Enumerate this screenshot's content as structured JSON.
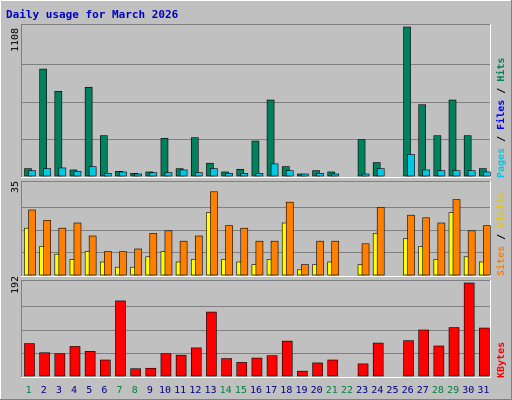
{
  "chart_data": [
    {
      "type": "bar",
      "panel": "hits-files-pages",
      "title": "Daily usage for March 2026",
      "ylabel_max": "1108",
      "legend": [
        {
          "name": "Pages",
          "color": "#00c8e6"
        },
        {
          "name": "Files",
          "color": "#0000ff"
        },
        {
          "name": "Hits",
          "color": "#00805c"
        }
      ],
      "ylim": [
        0,
        1108
      ],
      "grid": true,
      "categories": [
        "1",
        "2",
        "3",
        "4",
        "5",
        "6",
        "7",
        "8",
        "9",
        "10",
        "11",
        "12",
        "13",
        "14",
        "15",
        "16",
        "17",
        "18",
        "19",
        "20",
        "21",
        "22",
        "23",
        "24",
        "25",
        "26",
        "27",
        "28",
        "29",
        "30",
        "31"
      ],
      "series": [
        {
          "name": "Hits",
          "color": "#00805c",
          "values": [
            55,
            795,
            630,
            45,
            660,
            300,
            35,
            20,
            30,
            280,
            55,
            285,
            95,
            30,
            50,
            260,
            565,
            70,
            15,
            40,
            30,
            0,
            270,
            100,
            0,
            1108,
            530,
            300,
            565,
            300,
            55
          ]
        },
        {
          "name": "Pages",
          "color": "#00c8e6",
          "values": [
            40,
            55,
            60,
            35,
            70,
            20,
            30,
            10,
            25,
            25,
            45,
            25,
            55,
            20,
            20,
            20,
            90,
            40,
            10,
            20,
            15,
            0,
            10,
            55,
            0,
            160,
            45,
            40,
            40,
            40,
            30
          ]
        }
      ]
    },
    {
      "type": "bar",
      "panel": "sites-visits",
      "ylabel_max": "35",
      "legend": [
        {
          "name": "Sites",
          "color": "#ff8000"
        },
        {
          "name": "Visits",
          "color": "#ffff00"
        }
      ],
      "ylim": [
        0,
        35
      ],
      "grid": true,
      "categories": [
        "1",
        "2",
        "3",
        "4",
        "5",
        "6",
        "7",
        "8",
        "9",
        "10",
        "11",
        "12",
        "13",
        "14",
        "15",
        "16",
        "17",
        "18",
        "19",
        "20",
        "21",
        "22",
        "23",
        "24",
        "25",
        "26",
        "27",
        "28",
        "29",
        "30",
        "31"
      ],
      "series": [
        {
          "name": "Visits",
          "color": "#ffff00",
          "values": [
            18,
            11,
            8,
            6,
            9,
            5,
            3,
            3,
            7,
            9,
            5,
            6,
            24,
            6,
            5,
            4,
            6,
            20,
            2,
            4,
            5,
            0,
            4,
            16,
            0,
            14,
            11,
            6,
            24,
            7,
            5
          ]
        },
        {
          "name": "Sites",
          "color": "#ff8000",
          "values": [
            25,
            21,
            18,
            20,
            15,
            9,
            9,
            10,
            16,
            17,
            13,
            15,
            32,
            19,
            18,
            13,
            13,
            28,
            4,
            13,
            13,
            0,
            12,
            26,
            0,
            23,
            22,
            20,
            29,
            17,
            19
          ]
        }
      ]
    },
    {
      "type": "bar",
      "panel": "kbytes",
      "ylabel_max": "192",
      "legend": [
        {
          "name": "KBytes",
          "color": "#ff0000"
        }
      ],
      "ylim": [
        0,
        192
      ],
      "grid": true,
      "categories": [
        "1",
        "2",
        "3",
        "4",
        "5",
        "6",
        "7",
        "8",
        "9",
        "10",
        "11",
        "12",
        "13",
        "14",
        "15",
        "16",
        "17",
        "18",
        "19",
        "20",
        "21",
        "22",
        "23",
        "24",
        "25",
        "26",
        "27",
        "28",
        "29",
        "30",
        "31"
      ],
      "series": [
        {
          "name": "KBytes",
          "color": "#ff0000",
          "values": [
            67,
            48,
            46,
            61,
            51,
            33,
            155,
            15,
            16,
            46,
            43,
            58,
            132,
            36,
            28,
            37,
            42,
            72,
            10,
            27,
            33,
            0,
            25,
            68,
            0,
            73,
            95,
            62,
            100,
            192,
            99
          ]
        }
      ]
    }
  ],
  "x_labels": {
    "days": [
      "1",
      "2",
      "3",
      "4",
      "5",
      "6",
      "7",
      "8",
      "9",
      "10",
      "11",
      "12",
      "13",
      "14",
      "15",
      "16",
      "17",
      "18",
      "19",
      "20",
      "21",
      "22",
      "23",
      "24",
      "25",
      "26",
      "27",
      "28",
      "29",
      "30",
      "31"
    ],
    "weekend_days": [
      "1",
      "7",
      "8",
      "14",
      "15",
      "21",
      "22",
      "28",
      "29"
    ],
    "weekday_color": "#000080",
    "weekend_color": "#008040"
  },
  "colors": {
    "background": "#c0c0c0",
    "title": "#0000c0",
    "grid": "#808080"
  }
}
